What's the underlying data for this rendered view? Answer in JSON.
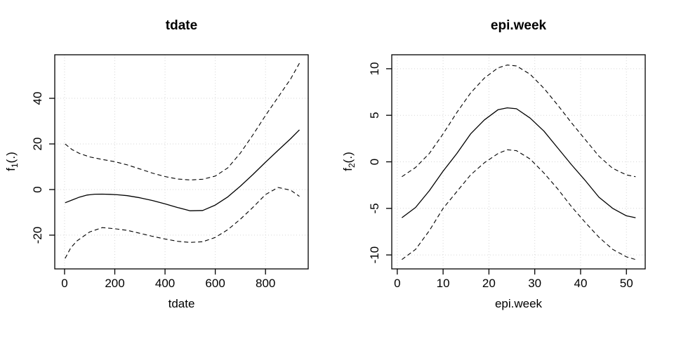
{
  "colors": {
    "line": "#000000",
    "grid": "#d6d6d6",
    "box": "#000000",
    "text": "#000000",
    "background": "#ffffff"
  },
  "chart_data": [
    {
      "type": "line",
      "title": "tdate",
      "xlabel": "tdate",
      "ylabel": {
        "text": "f1(.)",
        "base": "f",
        "sub": "1",
        "rest": "(.)"
      },
      "xlim": [
        -39,
        970
      ],
      "ylim": [
        -34.8,
        59.1
      ],
      "xticks": [
        0,
        200,
        400,
        600,
        800
      ],
      "yticks": [
        -20,
        0,
        20,
        40
      ],
      "grid": true,
      "legend": null,
      "series": [
        {
          "name": "fit",
          "style": "solid",
          "x": [
            2,
            30,
            60,
            90,
            120,
            150,
            180,
            210,
            250,
            300,
            350,
            400,
            450,
            500,
            550,
            600,
            650,
            700,
            750,
            800,
            850,
            900,
            935
          ],
          "y": [
            -5.8,
            -4.6,
            -3.3,
            -2.4,
            -2.05,
            -2.0,
            -2.1,
            -2.3,
            -2.7,
            -3.6,
            -4.8,
            -6.3,
            -7.9,
            -9.3,
            -9.2,
            -6.8,
            -3.2,
            1.5,
            6.6,
            12.0,
            17.2,
            22.3,
            26.2
          ]
        },
        {
          "name": "upper-ci",
          "style": "dashed",
          "x": [
            2,
            30,
            60,
            100,
            150,
            200,
            250,
            300,
            350,
            400,
            450,
            500,
            550,
            600,
            650,
            700,
            750,
            800,
            850,
            900,
            935
          ],
          "y": [
            20.0,
            17.5,
            15.8,
            14.3,
            13.2,
            12.2,
            10.8,
            9.0,
            7.2,
            5.7,
            4.6,
            4.2,
            4.5,
            5.9,
            9.5,
            16.0,
            24.0,
            32.5,
            40.5,
            48.5,
            55.4
          ]
        },
        {
          "name": "lower-ci",
          "style": "dashed",
          "x": [
            2,
            25,
            50,
            100,
            150,
            200,
            250,
            300,
            350,
            400,
            450,
            500,
            550,
            600,
            650,
            700,
            750,
            800,
            850,
            900,
            935
          ],
          "y": [
            -30.2,
            -25.5,
            -22.5,
            -18.6,
            -16.7,
            -17.2,
            -17.9,
            -19.2,
            -20.5,
            -21.7,
            -22.7,
            -23.2,
            -22.9,
            -21.0,
            -17.6,
            -13.0,
            -7.8,
            -2.2,
            0.9,
            -0.3,
            -3.0
          ]
        }
      ]
    },
    {
      "type": "line",
      "title": "epi.week",
      "xlabel": "epi.week",
      "ylabel": {
        "text": "f2(.)",
        "base": "f",
        "sub": "2",
        "rest": "(.)"
      },
      "xlim": [
        -1.2,
        54.1
      ],
      "ylim": [
        -11.5,
        11.5
      ],
      "xticks": [
        0,
        10,
        20,
        30,
        40,
        50
      ],
      "yticks": [
        -10,
        -5,
        0,
        5,
        10
      ],
      "grid": true,
      "legend": null,
      "series": [
        {
          "name": "fit",
          "style": "solid",
          "x": [
            1,
            4,
            7,
            10,
            13,
            16,
            19,
            22,
            24,
            26,
            29,
            32,
            35,
            38,
            41,
            44,
            47,
            50,
            52
          ],
          "y": [
            -6.0,
            -4.9,
            -3.1,
            -1.0,
            0.9,
            3.0,
            4.5,
            5.6,
            5.8,
            5.7,
            4.7,
            3.3,
            1.5,
            -0.3,
            -2.0,
            -3.8,
            -5.0,
            -5.8,
            -6.0
          ]
        },
        {
          "name": "upper-ci",
          "style": "dashed",
          "x": [
            1,
            4,
            7,
            10,
            13,
            16,
            19,
            22,
            24,
            26,
            29,
            32,
            35,
            38,
            41,
            44,
            47,
            50,
            52
          ],
          "y": [
            -1.6,
            -0.6,
            0.9,
            3.0,
            5.3,
            7.4,
            9.0,
            10.1,
            10.4,
            10.3,
            9.4,
            7.9,
            6.1,
            4.2,
            2.4,
            0.6,
            -0.7,
            -1.4,
            -1.6
          ]
        },
        {
          "name": "lower-ci",
          "style": "dashed",
          "x": [
            1,
            4,
            7,
            10,
            13,
            16,
            19,
            22,
            24,
            26,
            29,
            32,
            35,
            38,
            41,
            44,
            47,
            50,
            52
          ],
          "y": [
            -10.5,
            -9.4,
            -7.4,
            -5.0,
            -3.2,
            -1.4,
            -0.1,
            0.9,
            1.3,
            1.2,
            0.3,
            -1.2,
            -2.9,
            -4.8,
            -6.5,
            -8.1,
            -9.4,
            -10.2,
            -10.5
          ]
        }
      ]
    }
  ]
}
